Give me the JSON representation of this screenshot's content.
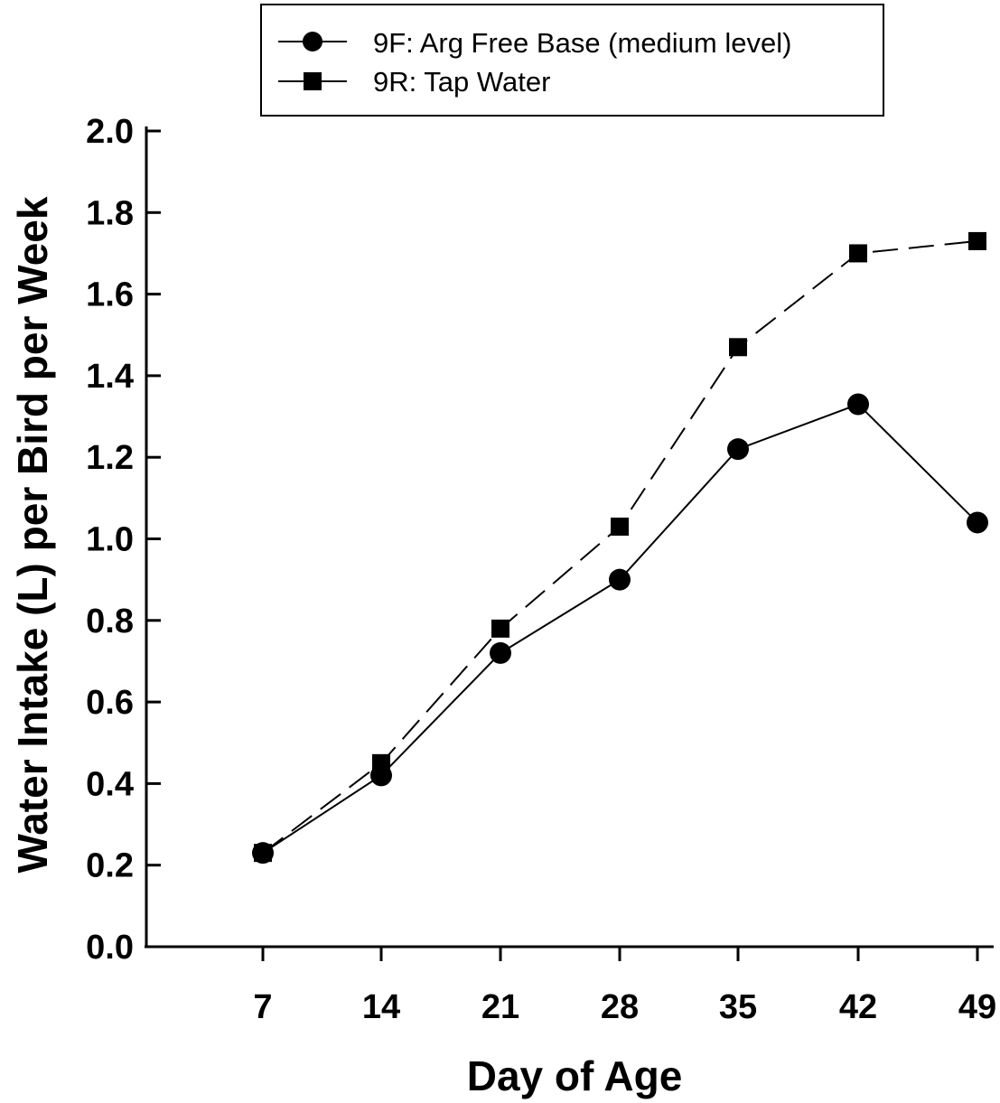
{
  "chart_data": {
    "type": "line",
    "title": "",
    "xlabel": "Day of Age",
    "ylabel": "Water Intake (L) per Bird per Week",
    "x": [
      7,
      14,
      21,
      28,
      35,
      42,
      49
    ],
    "x_tick_labels": [
      "7",
      "14",
      "21",
      "28",
      "35",
      "42",
      "49"
    ],
    "ylim": [
      0.0,
      2.0
    ],
    "y_ticks": [
      0.0,
      0.2,
      0.4,
      0.6,
      0.8,
      1.0,
      1.2,
      1.4,
      1.6,
      1.8,
      2.0
    ],
    "y_tick_labels": [
      "0.0",
      "0.2",
      "0.4",
      "0.6",
      "0.8",
      "1.0",
      "1.2",
      "1.4",
      "1.6",
      "1.8",
      "2.0"
    ],
    "grid": false,
    "legend_position": "top",
    "series": [
      {
        "name": "9F: Arg Free Base (medium level)",
        "marker": "circle",
        "line_style": "solid",
        "color": "#000000",
        "values": [
          0.23,
          0.42,
          0.72,
          0.9,
          1.22,
          1.33,
          1.04
        ]
      },
      {
        "name": "9R: Tap Water",
        "marker": "square",
        "line_style": "dashed",
        "color": "#000000",
        "values": [
          0.23,
          0.45,
          0.78,
          1.03,
          1.47,
          1.7,
          1.73
        ]
      }
    ]
  }
}
